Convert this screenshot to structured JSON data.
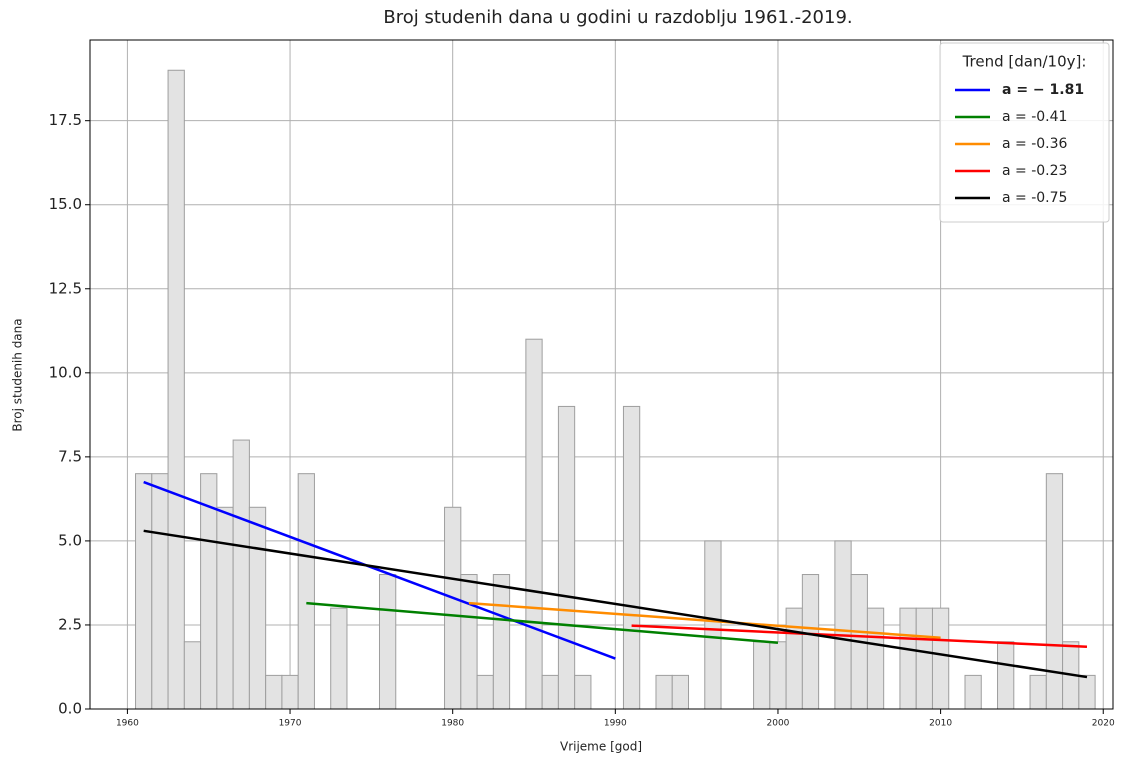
{
  "chart_data": {
    "type": "bar",
    "title": "Broj studenih dana u godini u razdoblju 1961.-2019.",
    "xlabel": "Vrijeme [god]",
    "ylabel": "Broj studenih dana",
    "x": [
      1961,
      1962,
      1963,
      1964,
      1965,
      1966,
      1967,
      1968,
      1969,
      1970,
      1971,
      1972,
      1973,
      1974,
      1975,
      1976,
      1977,
      1978,
      1979,
      1980,
      1981,
      1982,
      1983,
      1984,
      1985,
      1986,
      1987,
      1988,
      1989,
      1990,
      1991,
      1992,
      1993,
      1994,
      1995,
      1996,
      1997,
      1998,
      1999,
      2000,
      2001,
      2002,
      2003,
      2004,
      2005,
      2006,
      2007,
      2008,
      2009,
      2010,
      2011,
      2012,
      2013,
      2014,
      2015,
      2016,
      2017,
      2018,
      2019
    ],
    "values": [
      7,
      7,
      19,
      2,
      7,
      6,
      8,
      6,
      1,
      1,
      7,
      0,
      3,
      0,
      0,
      4,
      0,
      0,
      0,
      6,
      4,
      1,
      4,
      0,
      11,
      1,
      9,
      1,
      0,
      0,
      9,
      0,
      1,
      1,
      0,
      5,
      0,
      0,
      2,
      2,
      3,
      4,
      0,
      5,
      4,
      3,
      0,
      3,
      3,
      3,
      0,
      1,
      0,
      2,
      0,
      1,
      7,
      2,
      1
    ],
    "color": "#e3e3e3",
    "edgecolor": "#9e9e9e",
    "trends": [
      {
        "name": "a = − 1.81",
        "bold": true,
        "color": "#0000ff",
        "x": [
          1961,
          1990
        ],
        "values": [
          6.75,
          1.5
        ]
      },
      {
        "name": "a = -0.41",
        "color": "#008000",
        "x": [
          1971,
          2000
        ],
        "values": [
          3.15,
          1.97
        ]
      },
      {
        "name": "a = -0.36",
        "color": "#ff8c00",
        "x": [
          1981,
          2010
        ],
        "values": [
          3.15,
          2.12
        ]
      },
      {
        "name": "a = -0.23",
        "color": "#ff0000",
        "x": [
          1991,
          2019
        ],
        "values": [
          2.48,
          1.85
        ]
      },
      {
        "name": "a = -0.75",
        "color": "#000000",
        "x": [
          1961,
          2019
        ],
        "values": [
          5.3,
          0.95
        ]
      }
    ],
    "legend_title": "Trend [dan/10y]:",
    "legend": "upper right",
    "xlim": [
      1957.7,
      2020.6
    ],
    "ylim": [
      0,
      19.9
    ],
    "xticks": [
      1960,
      1970,
      1980,
      1990,
      2000,
      2010,
      2020
    ],
    "yticks": [
      {
        "value": 0,
        "label": "0.0"
      },
      2.5,
      {
        "value": 5,
        "label": "5.0"
      },
      7.5,
      {
        "value": 10,
        "label": "10.0"
      },
      12.5,
      {
        "value": 15,
        "label": "15.0"
      },
      17.5
    ],
    "grid": true
  }
}
